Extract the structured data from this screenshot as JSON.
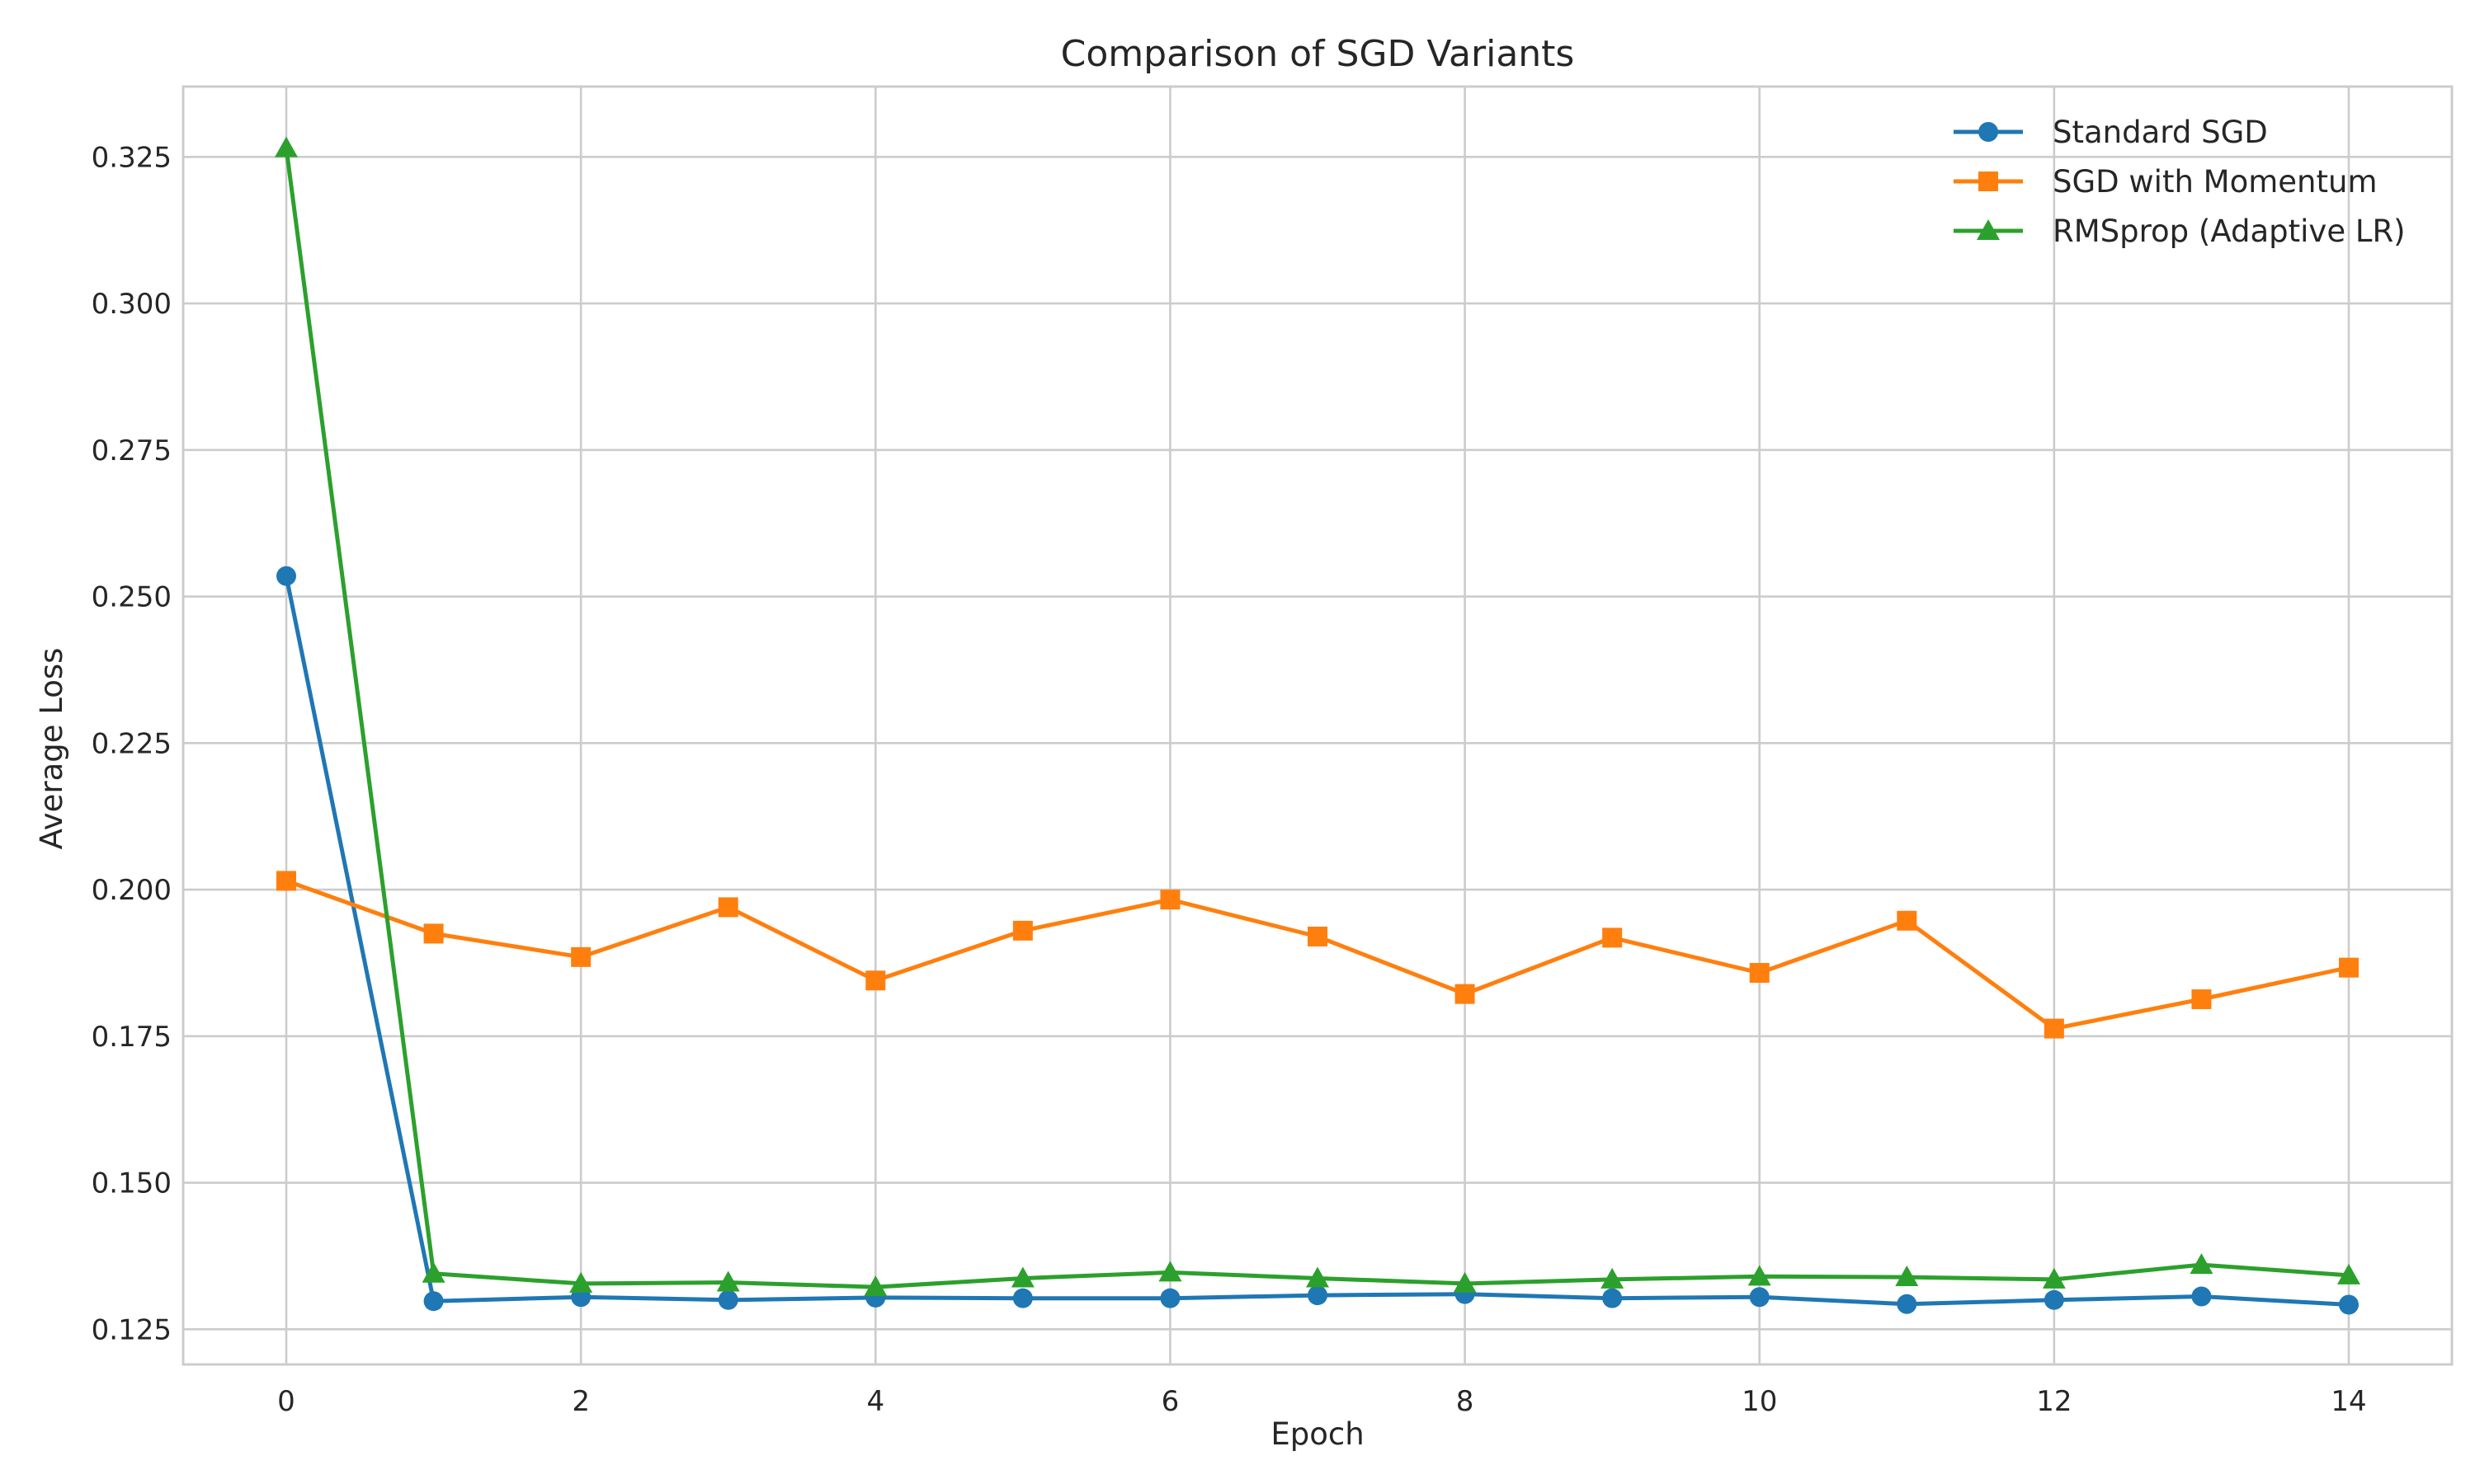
{
  "chart_data": {
    "type": "line",
    "title": "Comparison of SGD Variants",
    "xlabel": "Epoch",
    "ylabel": "Average Loss",
    "x": [
      0,
      1,
      2,
      3,
      4,
      5,
      6,
      7,
      8,
      9,
      10,
      11,
      12,
      13,
      14
    ],
    "xlim": [
      -0.7,
      14.7
    ],
    "ylim": [
      0.119,
      0.337
    ],
    "xticks": [
      0,
      2,
      4,
      6,
      8,
      10,
      12,
      14
    ],
    "xtick_labels": [
      "0",
      "2",
      "4",
      "6",
      "8",
      "10",
      "12",
      "14"
    ],
    "yticks": [
      0.125,
      0.15,
      0.175,
      0.2,
      0.225,
      0.25,
      0.275,
      0.3,
      0.325
    ],
    "ytick_labels": [
      "0.125",
      "0.150",
      "0.175",
      "0.200",
      "0.225",
      "0.250",
      "0.275",
      "0.300",
      "0.325"
    ],
    "grid": true,
    "legend_position": "top-right",
    "series": [
      {
        "name": "Standard SGD",
        "color": "#1f77b4",
        "marker": "circle",
        "values": [
          0.2535,
          0.1298,
          0.1305,
          0.13,
          0.1304,
          0.1303,
          0.1303,
          0.1308,
          0.131,
          0.1303,
          0.1305,
          0.1293,
          0.13,
          0.1306,
          0.1292
        ]
      },
      {
        "name": "SGD with Momentum",
        "color": "#ff7f0e",
        "marker": "square",
        "values": [
          0.2015,
          0.1925,
          0.1885,
          0.197,
          0.1845,
          0.193,
          0.1983,
          0.192,
          0.1822,
          0.1918,
          0.1858,
          0.1947,
          0.1763,
          0.1813,
          0.1867
        ]
      },
      {
        "name": "RMSprop (Adaptive LR)",
        "color": "#2ca02c",
        "marker": "triangle",
        "values": [
          0.3265,
          0.1345,
          0.1328,
          0.133,
          0.1322,
          0.1337,
          0.1347,
          0.1337,
          0.1328,
          0.1335,
          0.134,
          0.1339,
          0.1335,
          0.136,
          0.1342
        ]
      }
    ]
  }
}
